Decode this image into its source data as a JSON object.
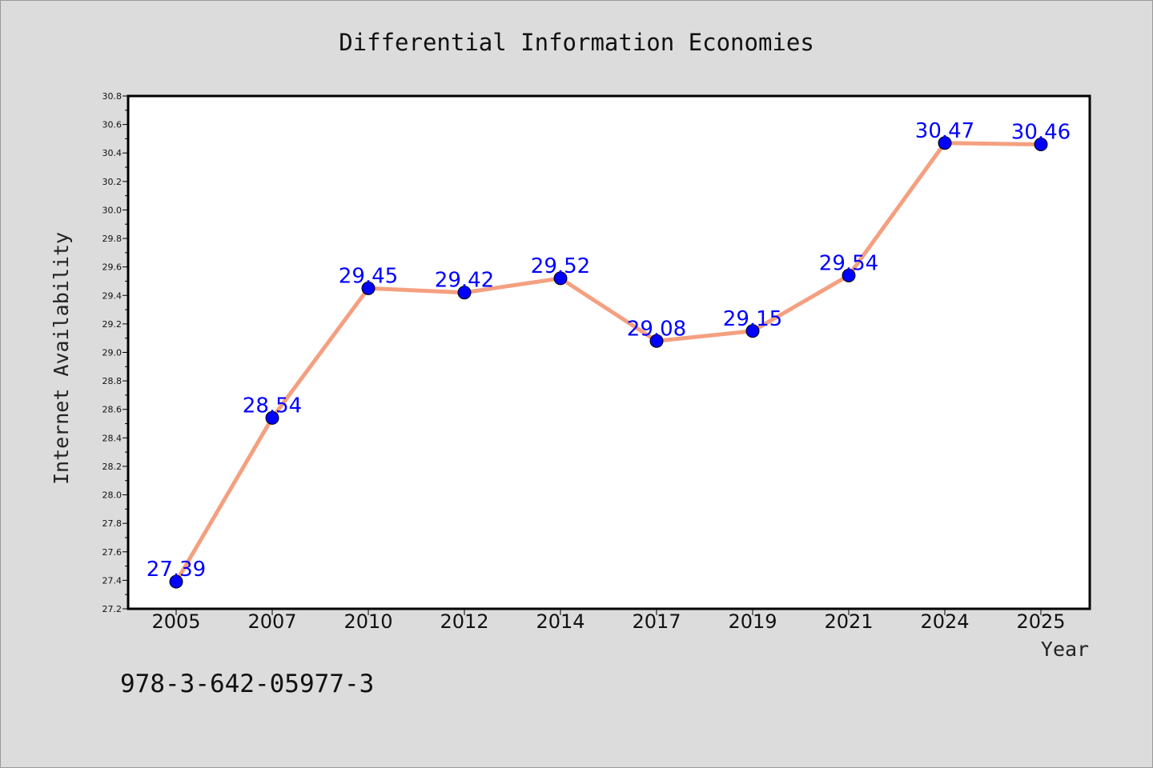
{
  "chart_data": {
    "type": "line",
    "title": "Differential Information Economies",
    "xlabel": "Year",
    "ylabel": "Internet Availability",
    "categories": [
      "2005",
      "2007",
      "2010",
      "2012",
      "2014",
      "2017",
      "2019",
      "2021",
      "2024",
      "2025"
    ],
    "values": [
      27.39,
      28.54,
      29.45,
      29.42,
      29.52,
      29.08,
      29.15,
      29.54,
      30.47,
      30.46
    ],
    "data_labels": [
      "27.39",
      "28.54",
      "29.45",
      "29.42",
      "29.52",
      "29.08",
      "29.15",
      "29.54",
      "30.47",
      "30.46"
    ],
    "ylim": [
      27.2,
      30.8
    ],
    "yticks": [
      "27.2",
      "27.4",
      "27.6",
      "27.8",
      "28.0",
      "28.2",
      "28.4",
      "28.6",
      "28.8",
      "29.0",
      "29.2",
      "29.4",
      "29.6",
      "29.8",
      "30.0",
      "30.2",
      "30.4",
      "30.6",
      "30.8"
    ],
    "grid": false,
    "legend": "none",
    "colors": {
      "line": "#f4a080",
      "marker": "#0000ff",
      "data_label": "#0000ff",
      "background": "#dcdcdc",
      "plot_background": "#ffffff"
    }
  },
  "footnote": "978-3-642-05977-3"
}
